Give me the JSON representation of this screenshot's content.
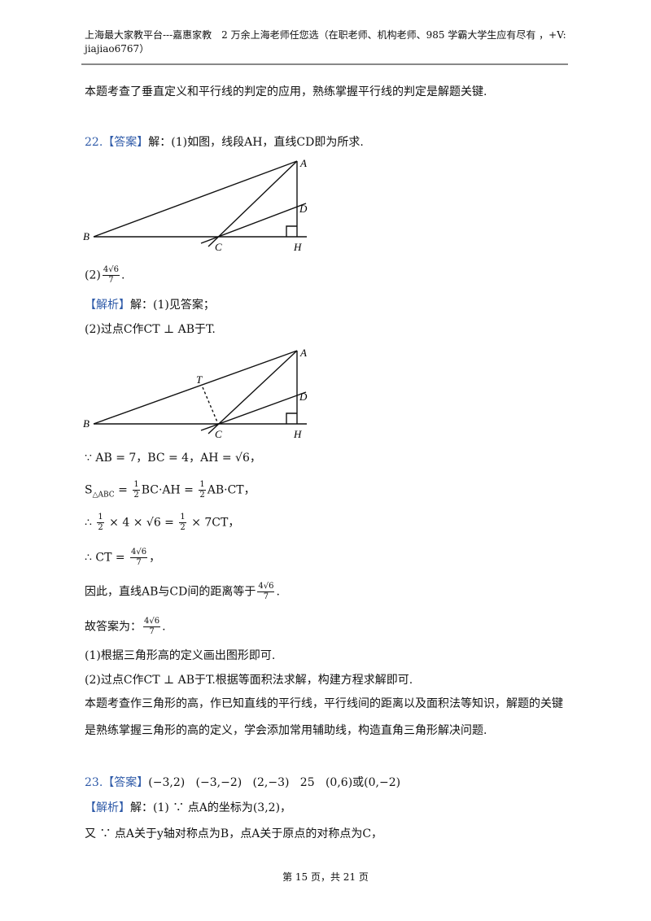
{
  "header": {
    "line1": "上海最大家教平台---嘉惠家教　2 万余上海老师任您选（在职老师、机构老师、985 学霸大学生应有尽有 ，+V:",
    "line2": "jiajiao6767）"
  },
  "lines": [
    {
      "parts": [
        "本题考查了垂直定义和平行线的判定的应用，熟练掌握平行线的判定是解题关键."
      ]
    },
    {
      "parts": [
        {
          "text": "22.",
          "color": "#2e5aa8"
        },
        {
          "text": "【答案】",
          "color": "#2e5aa8"
        },
        "解：(1)如图，线段AH，直线CD即为所求."
      ]
    },
    {
      "parts": [
        "(2)",
        {
          "num": "4√6",
          "den": "7"
        },
        "."
      ]
    },
    {
      "parts": [
        {
          "text": "【解析】",
          "color": "#2e5aa8"
        },
        "解：(1)见答案；"
      ]
    },
    {
      "parts": [
        "(2)过点C作CT ⊥ AB于T."
      ]
    },
    {
      "parts": [
        "∵ AB = 7，BC = 4，AH = √6，"
      ]
    },
    {
      "parts": [
        "S",
        {
          "sub": "△ABC"
        },
        " = ",
        {
          "num": "1",
          "den": "2"
        },
        "BC·AH = ",
        {
          "num": "1",
          "den": "2"
        },
        "AB·CT，"
      ]
    },
    {
      "parts": [
        "∴ ",
        {
          "num": "1",
          "den": "2"
        },
        " × 4 × √6 = ",
        {
          "num": "1",
          "den": "2"
        },
        " × 7CT，"
      ]
    },
    {
      "parts": [
        "∴ CT = ",
        {
          "num": "4√6",
          "den": "7"
        },
        "，"
      ]
    },
    {
      "parts": [
        "因此，直线AB与CD间的距离等于",
        {
          "num": "4√6",
          "den": "7"
        },
        "."
      ]
    },
    {
      "parts": [
        "故答案为：",
        {
          "num": "4√6",
          "den": "7"
        },
        "."
      ]
    },
    {
      "parts": [
        "(1)根据三角形高的定义画出图形即可."
      ]
    },
    {
      "parts": [
        "(2)过点C作CT ⊥ AB于T.根据等面积法求解，构建方程求解即可."
      ]
    },
    {
      "parts": [
        "本题考查作三角形的高，作已知直线的平行线，平行线间的距离以及面积法等知识，解题的关键"
      ]
    },
    {
      "parts": [
        "是熟练掌握三角形的高的定义，学会添加常用辅助线，构造直角三角形解决问题."
      ]
    },
    {
      "parts": [
        {
          "text": "23.",
          "color": "#2e5aa8"
        },
        {
          "text": "【答案】",
          "color": "#2e5aa8"
        },
        "(−3,2)   (−3,−2)   (2,−3)   25   (0,6)或(0,−2)"
      ]
    },
    {
      "parts": [
        {
          "text": "【解析】",
          "color": "#2e5aa8"
        },
        "解：(1) ∵ 点A的坐标为(3,2)，"
      ]
    },
    {
      "parts": [
        "又 ∵ 点A关于y轴对称点为B，点A关于原点的对称点为C，"
      ]
    }
  ],
  "figure1": [
    "A",
    "D",
    "B",
    "C",
    "H"
  ],
  "figure2": [
    "A",
    "T",
    "D",
    "B",
    "C",
    "H"
  ],
  "footer": "第 15 页，共 21 页"
}
